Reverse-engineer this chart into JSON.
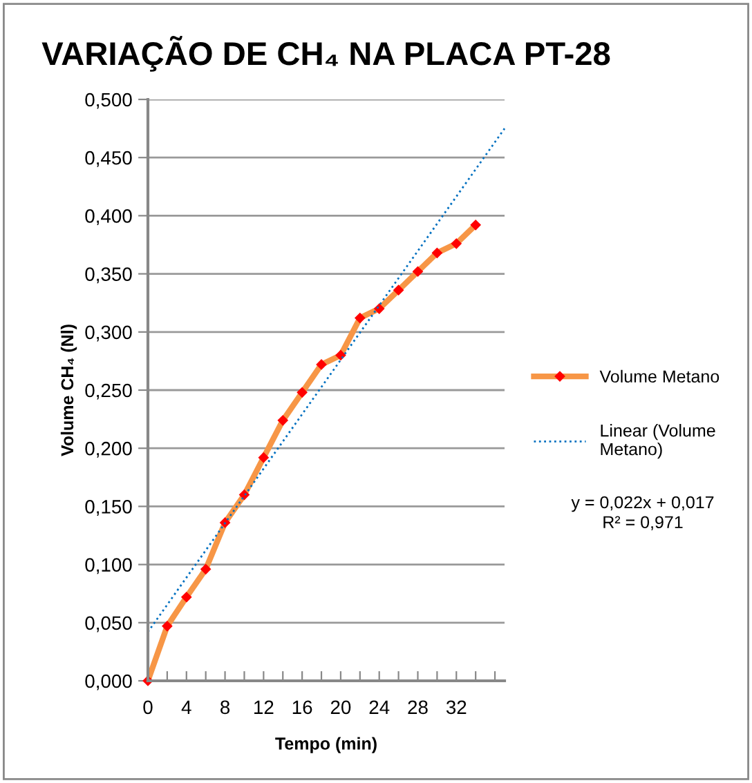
{
  "chart_data": {
    "type": "line",
    "title": "VARIAÇÃO DE CH₄ NA PLACA PT-28",
    "xlabel": "Tempo (min)",
    "ylabel": "Volume CH₄ (Nl)",
    "series": [
      {
        "name": "Volume Metano",
        "color": "#f79646",
        "marker": "diamond",
        "line_style": "solid",
        "x": [
          0,
          2,
          4,
          6,
          8,
          10,
          12,
          14,
          16,
          18,
          20,
          22,
          24,
          26,
          28,
          30,
          32,
          34
        ],
        "values": [
          0,
          0.047,
          0.072,
          0.096,
          0.136,
          0.16,
          0.192,
          0.224,
          0.248,
          0.272,
          0.28,
          0.312,
          0.32,
          0.336,
          0.352,
          0.368,
          0.376,
          0.392
        ]
      },
      {
        "name": "Linear (Volume Metano)",
        "color": "#0070c0",
        "marker": "none",
        "line_style": "dotted",
        "x": [
          0,
          37
        ],
        "values": [
          0.042,
          0.475
        ]
      }
    ],
    "annotations": [
      "y = 0,022x + 0,017\nR² = 0,971"
    ],
    "xlim": [
      0,
      37
    ],
    "xticks": [
      0,
      {
        "value": 2,
        "label": null
      },
      4,
      {
        "value": 6,
        "label": null
      },
      8,
      {
        "value": 10,
        "label": null
      },
      12,
      {
        "value": 14,
        "label": null
      },
      16,
      {
        "value": 18,
        "label": null
      },
      20,
      {
        "value": 22,
        "label": null
      },
      24,
      {
        "value": 26,
        "label": null
      },
      28,
      {
        "value": 30,
        "label": null
      },
      32,
      {
        "value": 34,
        "label": null
      },
      {
        "value": 36,
        "label": null
      }
    ],
    "ylim": [
      0,
      0.5
    ],
    "yticks": [
      {
        "value": 0,
        "label": "0,000"
      },
      {
        "value": 0.05,
        "label": "0,050"
      },
      {
        "value": 0.1,
        "label": "0,100"
      },
      {
        "value": 0.15,
        "label": "0,150"
      },
      {
        "value": 0.2,
        "label": "0,200"
      },
      {
        "value": 0.25,
        "label": "0,250"
      },
      {
        "value": 0.3,
        "label": "0,300"
      },
      {
        "value": 0.35,
        "label": "0,350"
      },
      {
        "value": 0.4,
        "label": "0,400"
      },
      {
        "value": 0.45,
        "label": "0,450"
      },
      {
        "value": 0.5,
        "label": "0,500"
      }
    ],
    "grid": "y",
    "legend": "right"
  }
}
